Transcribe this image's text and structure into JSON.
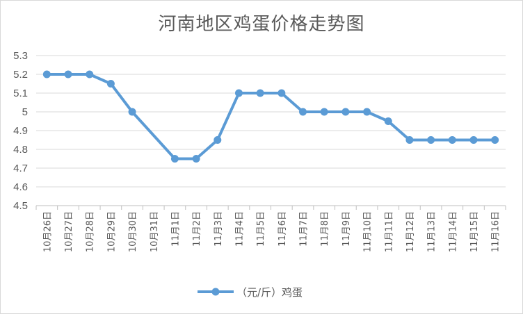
{
  "chart_data": {
    "type": "line",
    "title": "河南地区鸡蛋价格走势图",
    "xlabel": "",
    "ylabel": "",
    "ylim": [
      4.5,
      5.3
    ],
    "yticks": [
      4.5,
      4.6,
      4.7,
      4.8,
      4.9,
      5,
      5.1,
      5.2,
      5.3
    ],
    "grid": true,
    "legend_position": "bottom",
    "categories": [
      "10月26日",
      "10月27日",
      "10月28日",
      "10月29日",
      "10月30日",
      "10月31日",
      "11月1日",
      "11月2日",
      "11月3日",
      "11月4日",
      "11月5日",
      "11月6日",
      "11月7日",
      "11月8日",
      "11月9日",
      "11月10日",
      "11月11日",
      "11月12日",
      "11月13日",
      "11月14日",
      "11月15日",
      "11月16日"
    ],
    "series": [
      {
        "name": "（元/斤）鸡蛋",
        "color": "#5b9bd5",
        "values": [
          5.2,
          5.2,
          5.2,
          5.15,
          5.0,
          null,
          4.75,
          4.75,
          4.85,
          5.1,
          5.1,
          5.1,
          5.0,
          5.0,
          5.0,
          5.0,
          4.95,
          4.85,
          4.85,
          4.85,
          4.85,
          4.85
        ]
      }
    ]
  }
}
